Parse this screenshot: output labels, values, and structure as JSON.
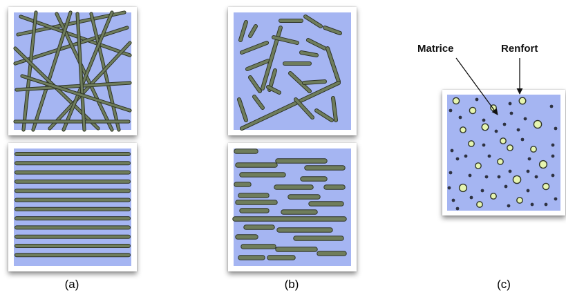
{
  "captions": {
    "a": "(a)",
    "b": "(b)",
    "c": "(c)"
  },
  "labels": {
    "matrix": "Matrice",
    "reinforcement": "Renfort"
  },
  "colors": {
    "matrix": "#a5b5f2",
    "fiber_fill": "#6f7d5c",
    "fiber_edge": "#2f3528",
    "particle_fill": "#e6f5b0",
    "particle_edge": "#2f3528",
    "dot": "#2e3241",
    "frame": "#ffffff"
  }
}
